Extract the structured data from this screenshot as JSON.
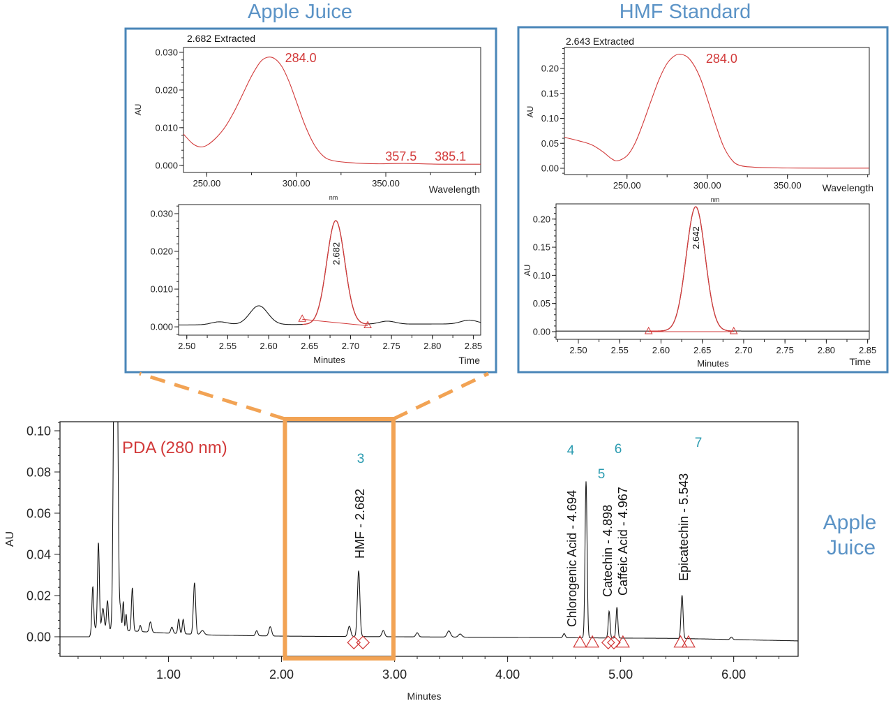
{
  "colors": {
    "frame": "#4a86b8",
    "title": "#5b93c6",
    "trace": "#1a1a1a",
    "red": "#d23a3a",
    "orange": "#f2a354",
    "teal": "#2a9bb0"
  },
  "titles": {
    "left": "Apple Juice",
    "right": "HMF Standard",
    "side_line1": "Apple",
    "side_line2": "Juice"
  },
  "chart_data": [
    {
      "id": "aj-spectrum",
      "type": "line",
      "title": "2.682 Extracted",
      "xlabel": "nm",
      "xlabel2": "Wavelength",
      "ylabel": "AU",
      "xlim": [
        237,
        403
      ],
      "ylim": [
        -0.0019,
        0.0313
      ],
      "xticks": [
        250,
        300,
        350
      ],
      "xtick_labels": [
        "250.00",
        "300.00",
        "350.00"
      ],
      "yticks": [
        0,
        0.01,
        0.02,
        0.03
      ],
      "ytick_labels": [
        "0.000",
        "0.010",
        "0.020",
        "0.030"
      ],
      "points": [
        [
          237,
          0.0083
        ],
        [
          242,
          0.0058
        ],
        [
          246,
          0.0049
        ],
        [
          250,
          0.0053
        ],
        [
          255,
          0.0072
        ],
        [
          260,
          0.01
        ],
        [
          265,
          0.014
        ],
        [
          270,
          0.0188
        ],
        [
          275,
          0.0237
        ],
        [
          280,
          0.0275
        ],
        [
          284,
          0.0287
        ],
        [
          288,
          0.0283
        ],
        [
          292,
          0.0262
        ],
        [
          296,
          0.0222
        ],
        [
          300,
          0.017
        ],
        [
          305,
          0.0105
        ],
        [
          310,
          0.0055
        ],
        [
          315,
          0.0025
        ],
        [
          320,
          0.0013
        ],
        [
          330,
          0.0007
        ],
        [
          345,
          0.0004
        ],
        [
          360,
          0.0005
        ],
        [
          380,
          0.0003
        ],
        [
          403,
          0.0003
        ]
      ],
      "annotations": [
        {
          "text": "284.0",
          "x": 284
        },
        {
          "text": "357.5",
          "x": 357.5
        },
        {
          "text": "385.1",
          "x": 385.1
        }
      ]
    },
    {
      "id": "aj-chrom",
      "type": "line",
      "xlabel": "Minutes",
      "xlabel2": "Time",
      "ylabel": "",
      "xlim": [
        2.49,
        2.859
      ],
      "ylim": [
        -0.0022,
        0.0324
      ],
      "xticks": [
        2.5,
        2.55,
        2.6,
        2.65,
        2.7,
        2.75,
        2.8,
        2.85
      ],
      "xtick_labels": [
        "2.50",
        "2.55",
        "2.60",
        "2.65",
        "2.70",
        "2.75",
        "2.80",
        "2.85"
      ],
      "yticks": [
        0,
        0.01,
        0.02,
        0.03
      ],
      "ytick_labels": [
        "0.000",
        "0.010",
        "0.020",
        "0.030"
      ],
      "baseline": [
        [
          2.49,
          0.0005
        ],
        [
          2.859,
          0.0008
        ]
      ],
      "peaks": [
        [
          2.54,
          0.0008,
          0.01
        ],
        [
          2.588,
          0.005,
          0.011
        ],
        [
          2.682,
          0.0275,
          0.011
        ],
        [
          2.745,
          0.0008,
          0.01
        ],
        [
          2.845,
          0.001,
          0.01
        ]
      ],
      "peak_label": {
        "text": "2.682",
        "x": 2.682
      },
      "integration": [
        [
          2.641,
          0.002
        ],
        [
          2.721,
          0.0003
        ]
      ]
    },
    {
      "id": "hmf-spectrum",
      "type": "line",
      "title": "2.643 Extracted",
      "xlabel": "nm",
      "xlabel2": "Wavelength",
      "ylabel": "AU",
      "xlim": [
        211,
        401
      ],
      "ylim": [
        -0.0126,
        0.242
      ],
      "xticks": [
        250,
        300,
        350
      ],
      "xtick_labels": [
        "250.00",
        "300.00",
        "350.00"
      ],
      "yticks": [
        0,
        0.05,
        0.1,
        0.15,
        0.2
      ],
      "ytick_labels": [
        "0.00",
        "0.05",
        "0.10",
        "0.15",
        "0.20"
      ],
      "points": [
        [
          211,
          0.062
        ],
        [
          220,
          0.055
        ],
        [
          228,
          0.047
        ],
        [
          235,
          0.033
        ],
        [
          240,
          0.02
        ],
        [
          244,
          0.015
        ],
        [
          250,
          0.025
        ],
        [
          255,
          0.05
        ],
        [
          260,
          0.09
        ],
        [
          265,
          0.135
        ],
        [
          270,
          0.178
        ],
        [
          275,
          0.21
        ],
        [
          280,
          0.226
        ],
        [
          284,
          0.228
        ],
        [
          288,
          0.222
        ],
        [
          292,
          0.205
        ],
        [
          296,
          0.178
        ],
        [
          300,
          0.14
        ],
        [
          305,
          0.09
        ],
        [
          310,
          0.045
        ],
        [
          315,
          0.018
        ],
        [
          320,
          0.006
        ],
        [
          330,
          0.002
        ],
        [
          350,
          0.0005
        ],
        [
          401,
          0.0002
        ]
      ],
      "annotations": [
        {
          "text": "284.0",
          "x": 284
        }
      ]
    },
    {
      "id": "hmf-chrom",
      "type": "line",
      "xlabel": "Minutes",
      "xlabel2": "Time",
      "ylabel": "AU",
      "xlim": [
        2.473,
        2.852
      ],
      "ylim": [
        -0.0137,
        0.227
      ],
      "xticks": [
        2.5,
        2.55,
        2.6,
        2.65,
        2.7,
        2.75,
        2.8,
        2.85
      ],
      "xtick_labels": [
        "2.50",
        "2.55",
        "2.60",
        "2.65",
        "2.70",
        "2.75",
        "2.80",
        "2.85"
      ],
      "yticks": [
        0,
        0.05,
        0.1,
        0.15,
        0.2
      ],
      "ytick_labels": [
        "0.00",
        "0.05",
        "0.10",
        "0.15",
        "0.20"
      ],
      "baseline": [
        [
          2.473,
          0.001
        ],
        [
          2.852,
          0.001
        ]
      ],
      "peaks": [
        [
          2.642,
          0.221,
          0.0115
        ]
      ],
      "peak_label": {
        "text": "2.642",
        "x": 2.642
      },
      "integration": [
        [
          2.585,
          0.0
        ],
        [
          2.688,
          0.0
        ]
      ]
    },
    {
      "id": "main-chrom",
      "type": "line",
      "legend": "PDA (280 nm)",
      "xlabel": "Minutes",
      "ylabel": "AU",
      "xlim": [
        0.04,
        6.57
      ],
      "ylim": [
        -0.0095,
        0.1044
      ],
      "xticks": [
        1,
        2,
        3,
        4,
        5,
        6
      ],
      "xtick_labels": [
        "1.00",
        "2.00",
        "3.00",
        "4.00",
        "5.00",
        "6.00"
      ],
      "yticks": [
        0,
        0.02,
        0.04,
        0.06,
        0.08,
        0.1
      ],
      "ytick_labels": [
        "0.00",
        "0.02",
        "0.04",
        "0.06",
        "0.08",
        "0.10"
      ],
      "baseline": [
        [
          0.04,
          0
        ],
        [
          0.3,
          0
        ],
        [
          0.35,
          0.004
        ],
        [
          0.9,
          0.002
        ],
        [
          1.4,
          0.0008
        ],
        [
          2.0,
          0.0003
        ],
        [
          4.0,
          -0.0003
        ],
        [
          5.5,
          -0.0008
        ],
        [
          6.57,
          -0.002
        ]
      ],
      "peaks": [
        [
          0.33,
          0.022,
          0.008
        ],
        [
          0.38,
          0.042,
          0.008
        ],
        [
          0.42,
          0.01,
          0.01
        ],
        [
          0.46,
          0.014,
          0.008
        ],
        [
          0.52,
          0.13,
          0.01
        ],
        [
          0.545,
          0.13,
          0.01
        ],
        [
          0.575,
          0.01,
          0.007
        ],
        [
          0.6,
          0.014,
          0.006
        ],
        [
          0.625,
          0.008,
          0.006
        ],
        [
          0.68,
          0.021,
          0.008
        ],
        [
          0.75,
          0.003,
          0.008
        ],
        [
          0.84,
          0.005,
          0.01
        ],
        [
          1.03,
          0.003,
          0.01
        ],
        [
          1.09,
          0.007,
          0.008
        ],
        [
          1.13,
          0.007,
          0.008
        ],
        [
          1.23,
          0.025,
          0.01
        ],
        [
          1.3,
          0.002,
          0.015
        ],
        [
          1.78,
          0.0025,
          0.01
        ],
        [
          1.9,
          0.0045,
          0.012
        ],
        [
          2.6,
          0.005,
          0.012
        ],
        [
          2.682,
          0.032,
          0.011
        ],
        [
          2.9,
          0.003,
          0.012
        ],
        [
          3.2,
          0.002,
          0.012
        ],
        [
          3.48,
          0.003,
          0.015
        ],
        [
          3.58,
          0.0015,
          0.015
        ],
        [
          4.5,
          0.002,
          0.01
        ],
        [
          4.694,
          0.076,
          0.009
        ],
        [
          4.898,
          0.013,
          0.008
        ],
        [
          4.967,
          0.015,
          0.008
        ],
        [
          5.543,
          0.021,
          0.009
        ],
        [
          5.98,
          0.0012,
          0.01
        ]
      ],
      "peak_labels": [
        {
          "num": "3",
          "name": "HMF - 2.682",
          "x": 2.682
        },
        {
          "num": "4",
          "name": "Chlorogenic Acid - 4.694",
          "x": 4.694
        },
        {
          "num": "5",
          "name": "Catechin - 4.898",
          "x": 4.898
        },
        {
          "num": "6",
          "name": "Caffeic Acid - 4.967",
          "x": 4.967
        },
        {
          "num": "7",
          "name": "Epicatechin - 5.543",
          "x": 5.543
        }
      ],
      "diamond_markers": [
        2.64,
        2.72,
        4.89,
        4.94
      ],
      "triangle_markers": [
        4.64,
        4.75,
        5.02,
        5.53,
        5.6
      ],
      "highlight_window": [
        2.03,
        2.99
      ]
    }
  ]
}
